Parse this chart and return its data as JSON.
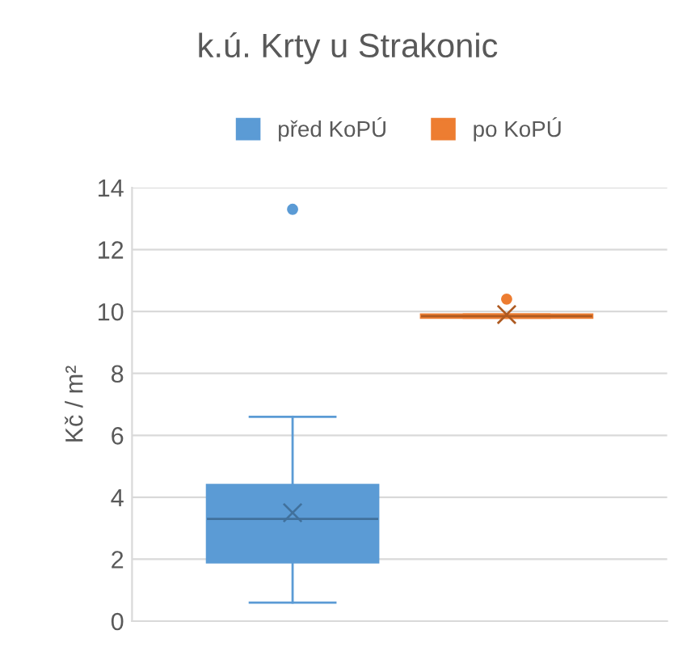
{
  "chart_data": {
    "type": "box",
    "title": "k.ú. Krty u Strakonic",
    "ylabel": "Kč / m²",
    "categories": [
      null
    ],
    "series": [
      {
        "name": "před KoPÚ",
        "color": "#5b9bd5",
        "boxes": [
          {
            "low": 0.6,
            "q1": 1.9,
            "median": 3.3,
            "q3": 4.4,
            "high": 6.6,
            "mean": 3.5,
            "outliers": [
              13.3
            ]
          }
        ]
      },
      {
        "name": "po KoPÚ",
        "color": "#ed7d31",
        "boxes": [
          {
            "low": 9.8,
            "q1": 9.8,
            "median": 9.85,
            "q3": 9.9,
            "high": 9.9,
            "mean": 9.9,
            "outliers": [
              10.4
            ]
          }
        ]
      }
    ],
    "ylim": [
      0,
      14
    ],
    "yticks": [
      0,
      2,
      4,
      6,
      8,
      10,
      12,
      14
    ],
    "grid": "y",
    "legend": "top"
  }
}
